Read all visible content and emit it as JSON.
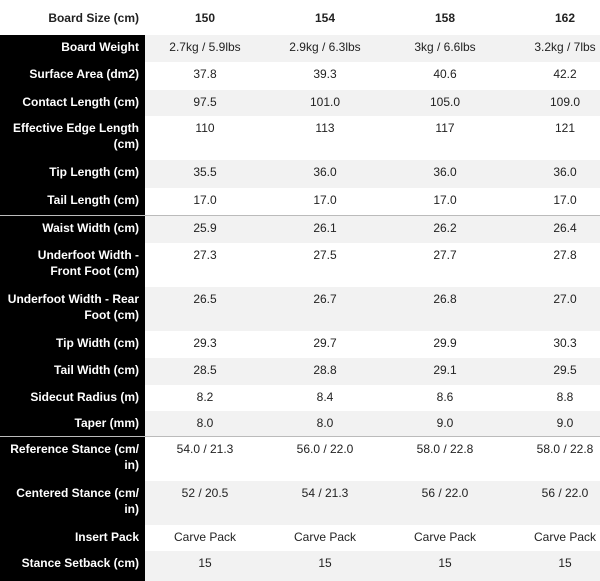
{
  "header": {
    "title": "Board Size (cm)",
    "sizes": [
      "150",
      "154",
      "158",
      "162"
    ]
  },
  "rows": [
    {
      "label": "Board Weight",
      "values": [
        "2.7kg / 5.9lbs",
        "2.9kg / 6.3lbs",
        "3kg / 6.6lbs",
        "3.2kg / 7lbs"
      ]
    },
    {
      "label": "Surface Area (dm2)",
      "values": [
        "37.8",
        "39.3",
        "40.6",
        "42.2"
      ]
    },
    {
      "label": "Contact Length (cm)",
      "values": [
        "97.5",
        "101.0",
        "105.0",
        "109.0"
      ]
    },
    {
      "label": "Effective Edge Length (cm)",
      "values": [
        "110",
        "113",
        "117",
        "121"
      ]
    },
    {
      "label": "Tip Length (cm)",
      "values": [
        "35.5",
        "36.0",
        "36.0",
        "36.0"
      ]
    },
    {
      "label": "Tail Length (cm)",
      "values": [
        "17.0",
        "17.0",
        "17.0",
        "17.0"
      ]
    },
    {
      "label": "Waist Width (cm)",
      "values": [
        "25.9",
        "26.1",
        "26.2",
        "26.4"
      ]
    },
    {
      "label": "Underfoot Width - Front Foot (cm)",
      "values": [
        "27.3",
        "27.5",
        "27.7",
        "27.8"
      ]
    },
    {
      "label": "Underfoot Width - Rear Foot (cm)",
      "values": [
        "26.5",
        "26.7",
        "26.8",
        "27.0"
      ]
    },
    {
      "label": "Tip Width (cm)",
      "values": [
        "29.3",
        "29.7",
        "29.9",
        "30.3"
      ]
    },
    {
      "label": "Tail Width (cm)",
      "values": [
        "28.5",
        "28.8",
        "29.1",
        "29.5"
      ]
    },
    {
      "label": "Sidecut Radius (m)",
      "values": [
        "8.2",
        "8.4",
        "8.6",
        "8.8"
      ]
    },
    {
      "label": "Taper (mm)",
      "values": [
        "8.0",
        "8.0",
        "9.0",
        "9.0"
      ]
    },
    {
      "label": "Reference Stance (cm/ in)",
      "values": [
        "54.0 / 21.3",
        "56.0 / 22.0",
        "58.0 / 22.8",
        "58.0 / 22.8"
      ]
    },
    {
      "label": "Centered Stance (cm/ in)",
      "values": [
        "52 / 20.5",
        "54 / 21.3",
        "56 / 22.0",
        "56 / 22.0"
      ]
    },
    {
      "label": "Insert Pack",
      "values": [
        "Carve Pack",
        "Carve Pack",
        "Carve Pack",
        "Carve Pack"
      ]
    },
    {
      "label": "Stance Setback (cm)",
      "values": [
        "15",
        "15",
        "15",
        "15"
      ]
    }
  ]
}
